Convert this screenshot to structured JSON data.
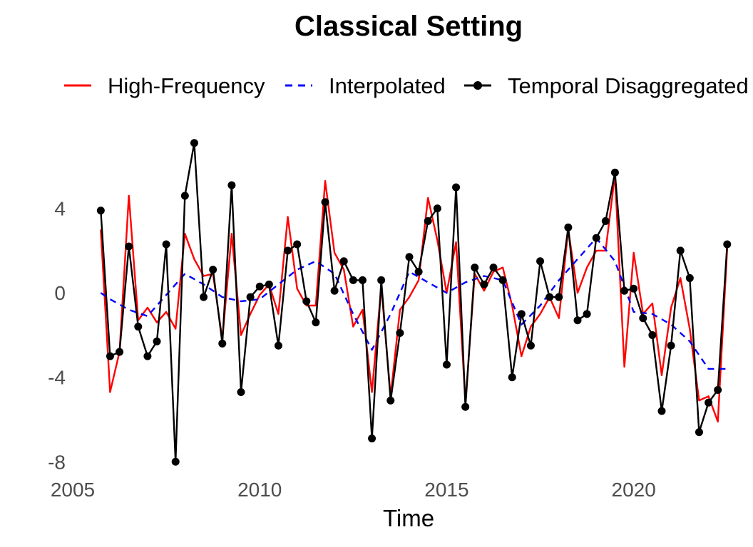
{
  "chart_data": {
    "type": "line",
    "title": "Classical Setting",
    "xlabel": "Time",
    "ylabel": "",
    "xlim": [
      2005.0,
      2023.0
    ],
    "ylim": [
      -8.8,
      7.8
    ],
    "x_ticks": [
      2005,
      2010,
      2015,
      2020
    ],
    "x_tick_labels": [
      "2005",
      "2010",
      "2015",
      "2020"
    ],
    "y_ticks": [
      -8,
      -4,
      0,
      4
    ],
    "y_tick_labels": [
      "-8",
      "-4",
      "0",
      "4"
    ],
    "grid": false,
    "legend_position": "top",
    "series": [
      {
        "name": "High-Frequency",
        "color": "#ff0000",
        "style": "solid",
        "markers": false,
        "x": [
          2005.75,
          2006.0,
          2006.25,
          2006.5,
          2006.75,
          2007.0,
          2007.25,
          2007.5,
          2007.75,
          2008.0,
          2008.25,
          2008.5,
          2008.75,
          2009.0,
          2009.25,
          2009.5,
          2009.75,
          2010.0,
          2010.25,
          2010.5,
          2010.75,
          2011.0,
          2011.25,
          2011.5,
          2011.75,
          2012.0,
          2012.25,
          2012.5,
          2012.75,
          2013.0,
          2013.25,
          2013.5,
          2013.75,
          2014.0,
          2014.25,
          2014.5,
          2014.75,
          2015.0,
          2015.25,
          2015.5,
          2015.75,
          2016.0,
          2016.25,
          2016.5,
          2016.75,
          2017.0,
          2017.25,
          2017.5,
          2017.75,
          2018.0,
          2018.25,
          2018.5,
          2018.75,
          2019.0,
          2019.25,
          2019.5,
          2019.75,
          2020.0,
          2020.25,
          2020.5,
          2020.75,
          2021.0,
          2021.25,
          2021.5,
          2021.75,
          2022.0,
          2022.25,
          2022.5
        ],
        "y": [
          3.0,
          -4.7,
          -2.8,
          4.6,
          -1.3,
          -0.7,
          -1.4,
          -0.9,
          -1.7,
          2.8,
          1.6,
          0.8,
          0.9,
          -2.2,
          2.8,
          -2.0,
          -1.0,
          -0.1,
          0.4,
          -1.0,
          3.6,
          0.2,
          -0.6,
          -0.6,
          5.3,
          1.9,
          1.1,
          -1.6,
          -0.8,
          -4.7,
          0.3,
          -4.9,
          -0.8,
          -0.2,
          0.6,
          4.5,
          2.5,
          0.0,
          2.4,
          -5.2,
          0.9,
          0.1,
          1.0,
          1.2,
          -0.6,
          -3.0,
          -1.6,
          -1.0,
          -0.2,
          -1.2,
          3.0,
          0.0,
          1.2,
          2.0,
          2.0,
          5.6,
          -3.5,
          1.9,
          -1.0,
          -0.5,
          -3.9,
          -0.7,
          0.7,
          -1.7,
          -5.1,
          -4.9,
          -6.1,
          2.1
        ]
      },
      {
        "name": "Interpolated",
        "color": "#0000ff",
        "style": "dashed",
        "markers": false,
        "x": [
          2005.75,
          2006.0,
          2006.5,
          2007.0,
          2007.5,
          2008.0,
          2008.5,
          2009.0,
          2009.5,
          2010.0,
          2010.5,
          2011.0,
          2011.5,
          2012.0,
          2012.5,
          2013.0,
          2013.5,
          2014.0,
          2014.5,
          2015.0,
          2015.5,
          2016.0,
          2016.5,
          2017.0,
          2017.5,
          2018.0,
          2018.5,
          2019.0,
          2019.5,
          2020.0,
          2020.5,
          2021.0,
          2021.5,
          2022.0,
          2022.5
        ],
        "y": [
          0.0,
          -0.3,
          -0.8,
          -1.1,
          -0.1,
          0.9,
          0.4,
          -0.2,
          -0.4,
          -0.3,
          0.4,
          1.1,
          1.5,
          0.9,
          -1.0,
          -2.7,
          -1.0,
          1.0,
          0.5,
          0.0,
          0.5,
          0.8,
          0.6,
          -1.5,
          -0.6,
          0.6,
          1.6,
          2.6,
          1.5,
          -0.9,
          -1.0,
          -1.5,
          -2.3,
          -3.6,
          -3.6
        ]
      },
      {
        "name": "Temporal Disaggregated",
        "color": "#000000",
        "style": "solid",
        "markers": true,
        "x": [
          2005.75,
          2006.0,
          2006.25,
          2006.5,
          2006.75,
          2007.0,
          2007.25,
          2007.5,
          2007.75,
          2008.0,
          2008.25,
          2008.5,
          2008.75,
          2009.0,
          2009.25,
          2009.5,
          2009.75,
          2010.0,
          2010.25,
          2010.5,
          2010.75,
          2011.0,
          2011.25,
          2011.5,
          2011.75,
          2012.0,
          2012.25,
          2012.5,
          2012.75,
          2013.0,
          2013.25,
          2013.5,
          2013.75,
          2014.0,
          2014.25,
          2014.5,
          2014.75,
          2015.0,
          2015.25,
          2015.5,
          2015.75,
          2016.0,
          2016.25,
          2016.5,
          2016.75,
          2017.0,
          2017.25,
          2017.5,
          2017.75,
          2018.0,
          2018.25,
          2018.5,
          2018.75,
          2019.0,
          2019.25,
          2019.5,
          2019.75,
          2020.0,
          2020.25,
          2020.5,
          2020.75,
          2021.0,
          2021.25,
          2021.5,
          2021.75,
          2022.0,
          2022.25,
          2022.5
        ],
        "y": [
          3.9,
          -3.0,
          -2.8,
          2.2,
          -1.6,
          -3.0,
          -2.3,
          2.3,
          -8.0,
          4.6,
          7.1,
          -0.2,
          1.1,
          -2.4,
          5.1,
          -4.7,
          -0.2,
          0.3,
          0.4,
          -2.5,
          2.0,
          2.3,
          -0.4,
          -1.4,
          4.3,
          0.1,
          1.5,
          0.6,
          0.6,
          -6.9,
          0.6,
          -5.1,
          -1.9,
          1.7,
          1.0,
          3.4,
          4.0,
          -3.4,
          5.0,
          -5.4,
          1.2,
          0.4,
          1.2,
          0.6,
          -4.0,
          -1.0,
          -2.5,
          1.5,
          -0.2,
          -0.2,
          3.1,
          -1.3,
          -1.0,
          2.6,
          3.4,
          5.7,
          0.1,
          0.2,
          -1.2,
          -2.0,
          -5.6,
          -2.5,
          2.0,
          0.7,
          -6.6,
          -5.2,
          -4.6,
          2.3
        ]
      }
    ]
  }
}
